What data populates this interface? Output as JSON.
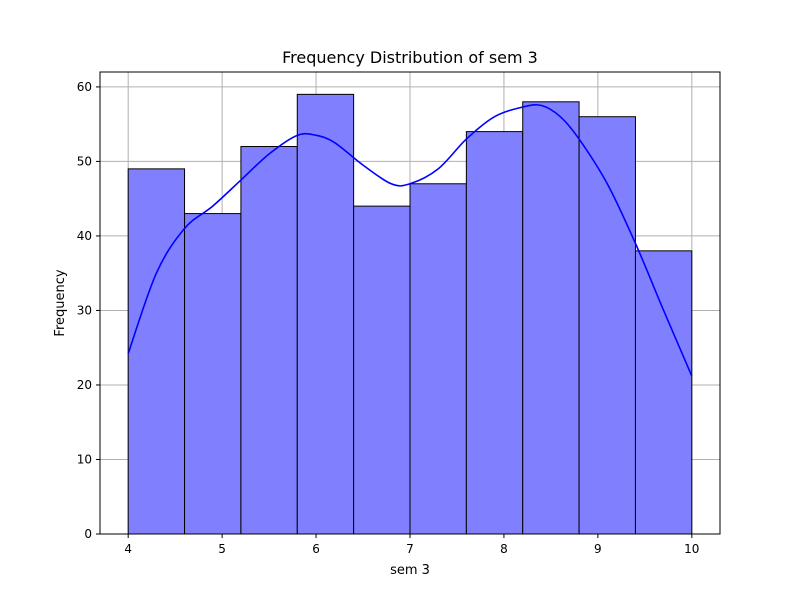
{
  "chart_data": {
    "type": "bar",
    "title": "Frequency Distribution of sem 3",
    "xlabel": "sem 3",
    "ylabel": "Frequency",
    "xlim": [
      3.7,
      10.3
    ],
    "ylim": [
      0,
      62
    ],
    "xticks": [
      4,
      5,
      6,
      7,
      8,
      9,
      10
    ],
    "yticks": [
      0,
      10,
      20,
      30,
      40,
      50,
      60
    ],
    "grid": true,
    "bins": [
      {
        "start": 4.0,
        "end": 4.6,
        "value": 49
      },
      {
        "start": 4.6,
        "end": 5.2,
        "value": 43
      },
      {
        "start": 5.2,
        "end": 5.8,
        "value": 52
      },
      {
        "start": 5.8,
        "end": 6.4,
        "value": 59
      },
      {
        "start": 6.4,
        "end": 7.0,
        "value": 44
      },
      {
        "start": 7.0,
        "end": 7.6,
        "value": 47
      },
      {
        "start": 7.6,
        "end": 8.2,
        "value": 54
      },
      {
        "start": 8.2,
        "end": 8.8,
        "value": 58
      },
      {
        "start": 8.8,
        "end": 9.4,
        "value": 56
      },
      {
        "start": 9.4,
        "end": 10.0,
        "value": 38
      }
    ],
    "kde": {
      "x": [
        4.0,
        4.3,
        4.6,
        4.9,
        5.2,
        5.5,
        5.8,
        6.0,
        6.2,
        6.5,
        6.8,
        7.0,
        7.3,
        7.6,
        7.9,
        8.2,
        8.4,
        8.6,
        8.8,
        9.1,
        9.4,
        9.7,
        10.0
      ],
      "y": [
        24.2,
        35.0,
        41.0,
        44.0,
        47.5,
        51.0,
        53.5,
        53.5,
        52.5,
        49.5,
        47.0,
        47.0,
        49.0,
        53.0,
        56.0,
        57.3,
        57.5,
        56.0,
        53.0,
        47.0,
        39.0,
        30.0,
        21.2
      ]
    },
    "colors": {
      "bar_fill": "#8080ff",
      "bar_edge": "#000000",
      "kde_line": "#0000ff",
      "grid": "#b0b0b0"
    }
  }
}
